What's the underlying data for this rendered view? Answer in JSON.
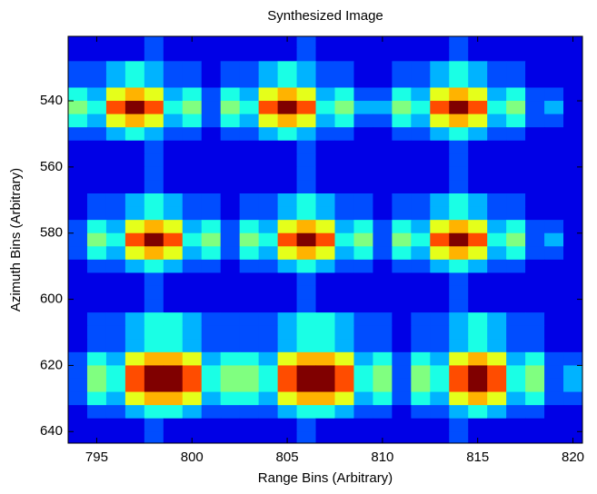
{
  "chart_data": {
    "type": "heatmap",
    "title": "Synthesized Image",
    "x_label": "Range Bins (Arbitrary)",
    "y_label": "Azimuth Bins (Arbitrary)",
    "colormap": "jet",
    "clim": [
      0,
      10
    ],
    "yreverse": true,
    "xlim": [
      793.5,
      820.5
    ],
    "ylim": [
      520.5,
      643.5
    ],
    "xticks": [
      795,
      800,
      805,
      810,
      815,
      820
    ],
    "yticks": [
      540,
      560,
      580,
      600,
      620,
      640
    ],
    "x": [
      794,
      795,
      796,
      797,
      798,
      799,
      800,
      801,
      802,
      803,
      804,
      805,
      806,
      807,
      808,
      809,
      810,
      811,
      812,
      813,
      814,
      815,
      816,
      817,
      818,
      819,
      820
    ],
    "y": [
      522,
      526,
      530,
      534,
      538,
      542,
      546,
      550,
      554,
      558,
      562,
      566,
      570,
      574,
      578,
      582,
      586,
      590,
      594,
      598,
      602,
      606,
      610,
      614,
      618,
      622,
      626,
      630,
      634,
      638,
      642
    ],
    "z": [
      [
        1,
        1,
        1,
        1,
        2,
        1,
        1,
        1,
        1,
        1,
        1,
        1,
        2,
        1,
        1,
        1,
        1,
        1,
        1,
        1,
        2,
        1,
        1,
        1,
        1,
        1,
        1
      ],
      [
        1,
        1,
        1,
        1,
        2,
        1,
        1,
        1,
        1,
        1,
        1,
        1,
        2,
        1,
        1,
        1,
        1,
        1,
        1,
        1,
        2,
        1,
        1,
        1,
        1,
        1,
        1
      ],
      [
        2,
        2,
        3,
        4,
        3,
        2,
        2,
        1,
        2,
        2,
        3,
        4,
        3,
        2,
        2,
        1,
        1,
        2,
        2,
        3,
        4,
        3,
        2,
        2,
        1,
        1,
        1
      ],
      [
        2,
        2,
        3,
        4,
        3,
        2,
        2,
        1,
        2,
        2,
        3,
        4,
        3,
        2,
        2,
        1,
        1,
        2,
        2,
        3,
        4,
        3,
        2,
        2,
        1,
        1,
        1
      ],
      [
        4,
        3,
        6,
        7,
        6,
        3,
        4,
        2,
        4,
        3,
        6,
        7,
        6,
        3,
        4,
        2,
        2,
        4,
        3,
        6,
        7,
        6,
        3,
        4,
        2,
        2,
        1
      ],
      [
        5,
        4,
        8,
        10,
        8,
        4,
        5,
        2,
        5,
        4,
        8,
        10,
        8,
        4,
        5,
        3,
        3,
        5,
        4,
        8,
        10,
        8,
        4,
        5,
        2,
        3,
        1
      ],
      [
        4,
        3,
        6,
        7,
        6,
        3,
        4,
        2,
        4,
        3,
        6,
        7,
        6,
        3,
        4,
        2,
        2,
        4,
        3,
        6,
        7,
        6,
        3,
        4,
        2,
        2,
        1
      ],
      [
        2,
        2,
        3,
        4,
        3,
        2,
        2,
        1,
        2,
        2,
        3,
        4,
        3,
        2,
        2,
        1,
        1,
        2,
        2,
        3,
        4,
        3,
        2,
        2,
        1,
        1,
        1
      ],
      [
        1,
        1,
        1,
        1,
        2,
        1,
        1,
        1,
        1,
        1,
        1,
        1,
        2,
        1,
        1,
        1,
        1,
        1,
        1,
        1,
        2,
        1,
        1,
        1,
        1,
        1,
        1
      ],
      [
        1,
        1,
        1,
        1,
        2,
        1,
        1,
        1,
        1,
        1,
        1,
        1,
        2,
        1,
        1,
        1,
        1,
        1,
        1,
        1,
        2,
        1,
        1,
        1,
        1,
        1,
        1
      ],
      [
        1,
        1,
        1,
        1,
        2,
        1,
        1,
        1,
        1,
        1,
        1,
        1,
        2,
        1,
        1,
        1,
        1,
        1,
        1,
        1,
        2,
        1,
        1,
        1,
        1,
        1,
        1
      ],
      [
        1,
        1,
        1,
        1,
        2,
        1,
        1,
        1,
        1,
        1,
        1,
        1,
        2,
        1,
        1,
        1,
        1,
        1,
        1,
        1,
        2,
        1,
        1,
        1,
        1,
        1,
        1
      ],
      [
        1,
        2,
        2,
        3,
        4,
        3,
        2,
        2,
        1,
        2,
        2,
        3,
        4,
        3,
        2,
        2,
        1,
        2,
        2,
        3,
        4,
        3,
        2,
        2,
        1,
        1,
        1
      ],
      [
        1,
        2,
        2,
        3,
        4,
        3,
        2,
        2,
        1,
        2,
        2,
        3,
        4,
        3,
        2,
        2,
        1,
        2,
        2,
        3,
        4,
        3,
        2,
        2,
        1,
        1,
        1
      ],
      [
        2,
        4,
        3,
        6,
        7,
        6,
        3,
        4,
        2,
        4,
        3,
        6,
        7,
        6,
        3,
        4,
        2,
        4,
        3,
        6,
        7,
        6,
        3,
        4,
        2,
        2,
        1
      ],
      [
        2,
        5,
        4,
        8,
        10,
        8,
        4,
        5,
        2,
        5,
        4,
        8,
        10,
        8,
        4,
        5,
        2,
        5,
        4,
        8,
        10,
        8,
        4,
        5,
        2,
        3,
        1
      ],
      [
        2,
        4,
        3,
        6,
        7,
        6,
        3,
        4,
        2,
        4,
        3,
        6,
        7,
        6,
        3,
        4,
        2,
        4,
        3,
        6,
        7,
        6,
        3,
        4,
        2,
        2,
        1
      ],
      [
        1,
        2,
        2,
        3,
        4,
        3,
        2,
        2,
        1,
        2,
        2,
        3,
        4,
        3,
        2,
        2,
        1,
        2,
        2,
        3,
        4,
        3,
        2,
        2,
        1,
        1,
        1
      ],
      [
        1,
        1,
        1,
        1,
        2,
        1,
        1,
        1,
        1,
        1,
        1,
        1,
        2,
        1,
        1,
        1,
        1,
        1,
        1,
        1,
        2,
        1,
        1,
        1,
        1,
        1,
        1
      ],
      [
        1,
        1,
        1,
        1,
        2,
        1,
        1,
        1,
        1,
        1,
        1,
        1,
        2,
        1,
        1,
        1,
        1,
        1,
        1,
        1,
        2,
        1,
        1,
        1,
        1,
        1,
        1
      ],
      [
        1,
        1,
        1,
        1,
        2,
        1,
        1,
        1,
        1,
        1,
        1,
        1,
        2,
        1,
        1,
        1,
        1,
        1,
        1,
        1,
        2,
        1,
        1,
        1,
        1,
        1,
        1
      ],
      [
        1,
        2,
        2,
        3,
        4,
        4,
        3,
        2,
        2,
        2,
        2,
        3,
        4,
        4,
        3,
        2,
        2,
        1,
        2,
        2,
        3,
        4,
        3,
        2,
        2,
        1,
        1
      ],
      [
        1,
        2,
        2,
        3,
        4,
        4,
        3,
        2,
        2,
        2,
        2,
        3,
        4,
        4,
        3,
        2,
        2,
        1,
        2,
        2,
        3,
        4,
        3,
        2,
        2,
        1,
        1
      ],
      [
        1,
        2,
        2,
        3,
        4,
        4,
        3,
        2,
        2,
        2,
        2,
        3,
        4,
        4,
        3,
        2,
        2,
        1,
        2,
        2,
        3,
        4,
        3,
        2,
        2,
        1,
        1
      ],
      [
        2,
        4,
        3,
        6,
        7,
        7,
        6,
        3,
        4,
        4,
        3,
        6,
        7,
        7,
        6,
        3,
        4,
        2,
        4,
        3,
        6,
        7,
        6,
        3,
        4,
        2,
        2
      ],
      [
        2,
        5,
        4,
        8,
        10,
        10,
        8,
        4,
        5,
        5,
        4,
        8,
        10,
        10,
        8,
        4,
        5,
        2,
        5,
        4,
        8,
        10,
        8,
        4,
        5,
        2,
        3
      ],
      [
        2,
        5,
        4,
        8,
        10,
        10,
        8,
        4,
        5,
        5,
        4,
        8,
        10,
        10,
        8,
        4,
        5,
        2,
        5,
        4,
        8,
        10,
        8,
        4,
        5,
        2,
        3
      ],
      [
        2,
        4,
        3,
        6,
        7,
        7,
        6,
        3,
        4,
        4,
        3,
        6,
        7,
        7,
        6,
        3,
        4,
        2,
        4,
        3,
        6,
        7,
        6,
        3,
        4,
        2,
        2
      ],
      [
        1,
        2,
        2,
        3,
        4,
        4,
        3,
        2,
        2,
        2,
        2,
        3,
        4,
        4,
        3,
        2,
        2,
        1,
        2,
        2,
        3,
        4,
        3,
        2,
        2,
        1,
        1
      ],
      [
        1,
        1,
        1,
        1,
        2,
        1,
        1,
        1,
        1,
        1,
        1,
        1,
        2,
        1,
        1,
        1,
        1,
        1,
        1,
        1,
        2,
        1,
        1,
        1,
        1,
        1,
        1
      ],
      [
        1,
        1,
        1,
        1,
        2,
        1,
        1,
        1,
        1,
        1,
        1,
        1,
        2,
        1,
        1,
        1,
        1,
        1,
        1,
        1,
        2,
        1,
        1,
        1,
        1,
        1,
        1
      ]
    ]
  }
}
